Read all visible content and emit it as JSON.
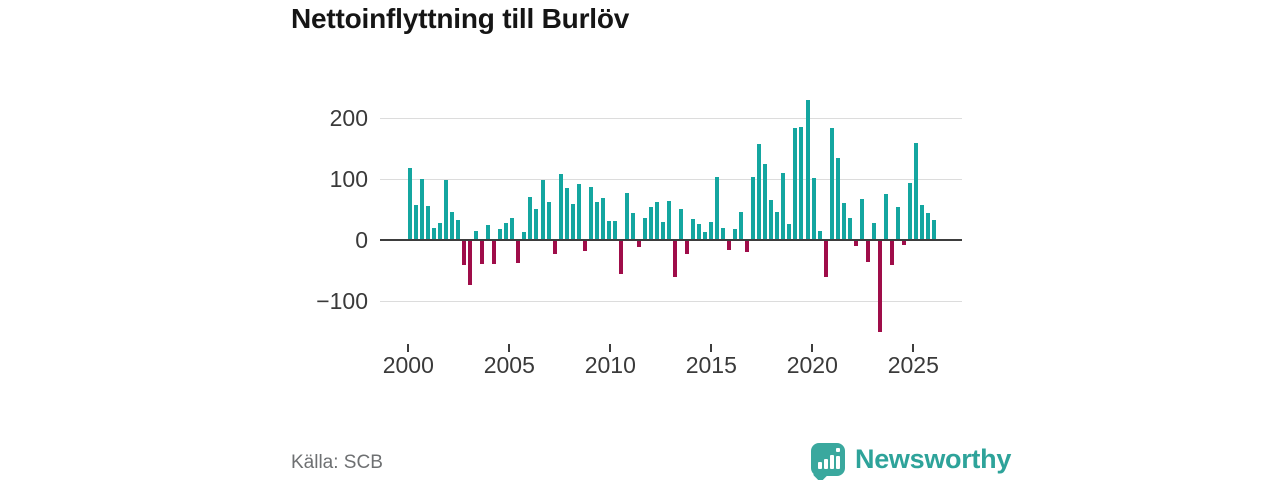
{
  "header": {
    "title": "Nettoinflyttning till Burlöv"
  },
  "footer": {
    "source": "Källa: SCB",
    "brand_wordmark": "Newsworthy"
  },
  "icons": {
    "newsworthy_icon": "speech-bubble-with-bar-chart-and-exclamation"
  },
  "colors": {
    "positive_bar": "#14a6a0",
    "negative_bar": "#9f0d49",
    "grid_line": "#dcdcdc",
    "zero_line": "#3d3d3d",
    "axis_text": "#3a3a3a",
    "title_text": "#151515",
    "source_text": "#6e7072",
    "brand_teal": "#2ea39a"
  },
  "chart_data": {
    "type": "bar",
    "title": "Nettoinflyttning till Burlöv",
    "xlabel": "",
    "ylabel": "",
    "legend": null,
    "grid": "horizontal",
    "x_range": {
      "start_year": 2000,
      "end_year": 2026
    },
    "x_ticks": [
      {
        "year": 2000,
        "label": "2000"
      },
      {
        "year": 2005,
        "label": "2005"
      },
      {
        "year": 2010,
        "label": "2010"
      },
      {
        "year": 2015,
        "label": "2015"
      },
      {
        "year": 2020,
        "label": "2020"
      },
      {
        "year": 2025,
        "label": "2025"
      }
    ],
    "y_ticks": [
      {
        "value": -100,
        "label": "−100"
      },
      {
        "value": 0,
        "label": "0"
      },
      {
        "value": 100,
        "label": "100"
      },
      {
        "value": 200,
        "label": "200"
      }
    ],
    "ylim": [
      -165,
      245
    ],
    "values": [
      117,
      57,
      99,
      55,
      19,
      27,
      98,
      46,
      32,
      -40,
      -72,
      14,
      -38,
      24,
      -38,
      18,
      27,
      36,
      -37,
      13,
      70,
      51,
      97,
      61,
      -21,
      108,
      84,
      58,
      91,
      -17,
      87,
      62,
      69,
      30,
      30,
      -55,
      76,
      44,
      -10,
      35,
      54,
      61,
      29,
      63,
      -59,
      50,
      -21,
      34,
      26,
      13,
      29,
      102,
      19,
      -15,
      18,
      46,
      -19,
      102,
      157,
      124,
      65,
      45,
      109,
      25,
      183,
      185,
      228,
      101,
      15,
      -60,
      183,
      133,
      60,
      36,
      -9,
      66,
      -35,
      28,
      -150,
      74,
      -40,
      54,
      -7,
      92,
      158,
      57,
      44,
      33
    ]
  }
}
